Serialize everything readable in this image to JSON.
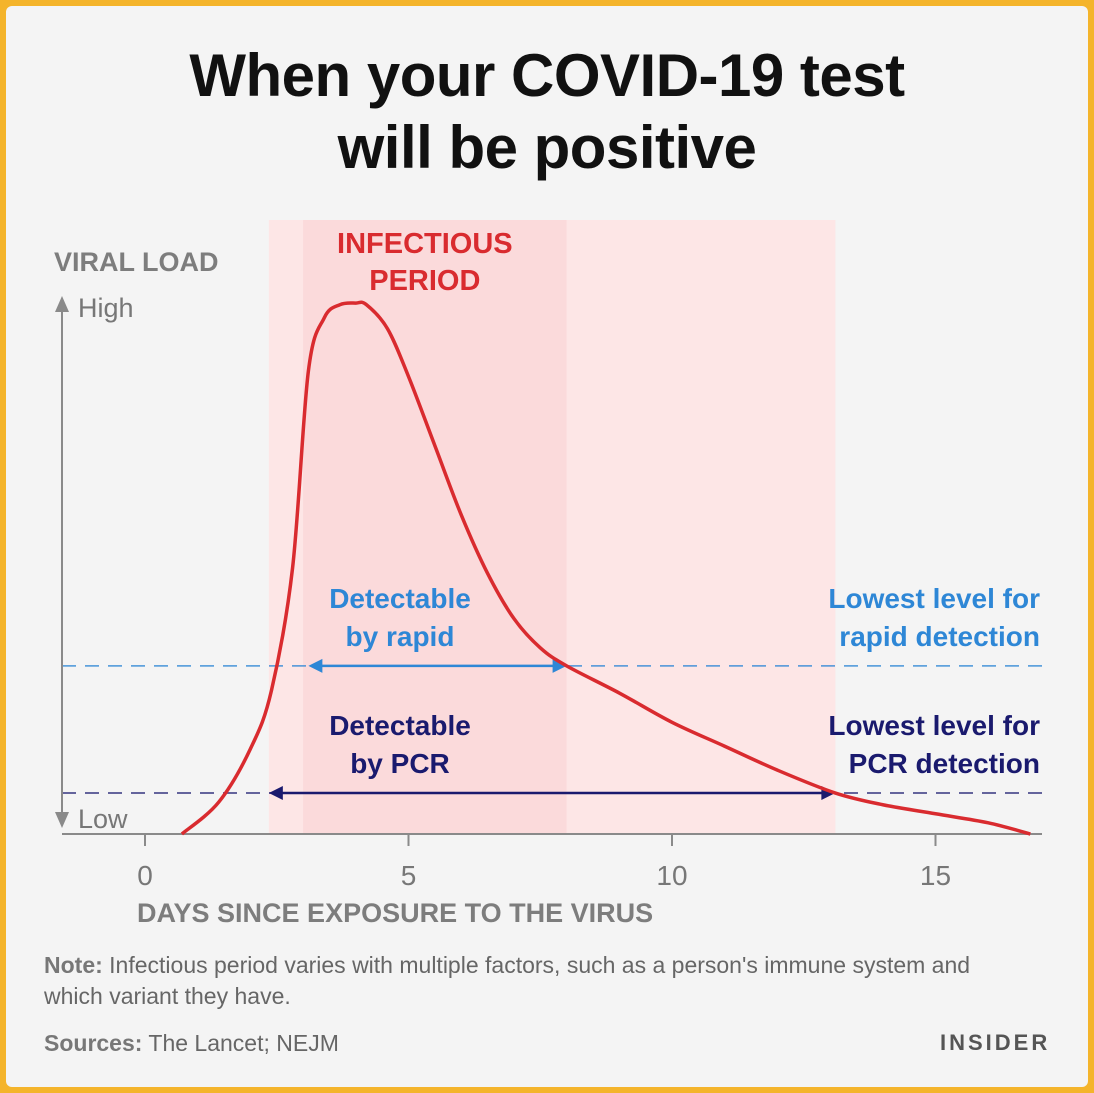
{
  "title_line1": "When your COVID-19 test",
  "title_line2": "will be positive",
  "chart_data": {
    "type": "line",
    "xlabel": "DAYS SINCE EXPOSURE TO THE VIRUS",
    "ylabel": "VIRAL LOAD",
    "y_high_label": "High",
    "y_low_label": "Low",
    "xlim": [
      -1.6,
      17
    ],
    "xticks": [
      0,
      5,
      10,
      15
    ],
    "grid": false,
    "curve": {
      "name": "Viral load",
      "color": "#d92b2f",
      "x": [
        0.7,
        1.4,
        2.0,
        2.4,
        2.8,
        3.1,
        3.4,
        3.7,
        4.0,
        4.2,
        4.6,
        5.0,
        5.5,
        6.0,
        6.5,
        7.0,
        7.5,
        8.0,
        9.0,
        10.0,
        11.0,
        12.0,
        13.1,
        14.0,
        15.0,
        16.0,
        16.8
      ],
      "y": [
        0.0,
        0.06,
        0.16,
        0.27,
        0.5,
        0.87,
        0.97,
        0.995,
        0.998,
        0.995,
        0.95,
        0.86,
        0.73,
        0.6,
        0.49,
        0.405,
        0.35,
        0.316,
        0.265,
        0.21,
        0.165,
        0.12,
        0.077,
        0.055,
        0.038,
        0.021,
        0.0
      ]
    },
    "regions": [
      {
        "label": "",
        "x": [
          2.35,
          13.1
        ],
        "color": "#fde6e6"
      },
      {
        "label": "INFECTIOUS PERIOD",
        "x": [
          3.0,
          8.0
        ],
        "color": "#fbdadb"
      }
    ],
    "thresholds": [
      {
        "label_line1": "Lowest level for",
        "label_line2": "rapid detection",
        "y": 0.316,
        "color": "#2e87d6"
      },
      {
        "label_line1": "Lowest level for",
        "label_line2": "PCR detection",
        "y": 0.077,
        "color": "#1a1a6e"
      }
    ],
    "ranges": [
      {
        "label_line1": "Detectable",
        "label_line2": "by rapid",
        "x": [
          3.1,
          8.0
        ],
        "color": "#2e87d6"
      },
      {
        "label_line1": "Detectable",
        "label_line2": "by PCR",
        "x": [
          2.35,
          13.1
        ],
        "color": "#1a1a6e"
      }
    ]
  },
  "note": {
    "label": "Note:",
    "text": " Infectious period varies with multiple factors, such as a person's immune system and which variant they have."
  },
  "sources": {
    "label": "Sources:",
    "text": " The Lancet; NEJM"
  },
  "brand": "INSIDER"
}
